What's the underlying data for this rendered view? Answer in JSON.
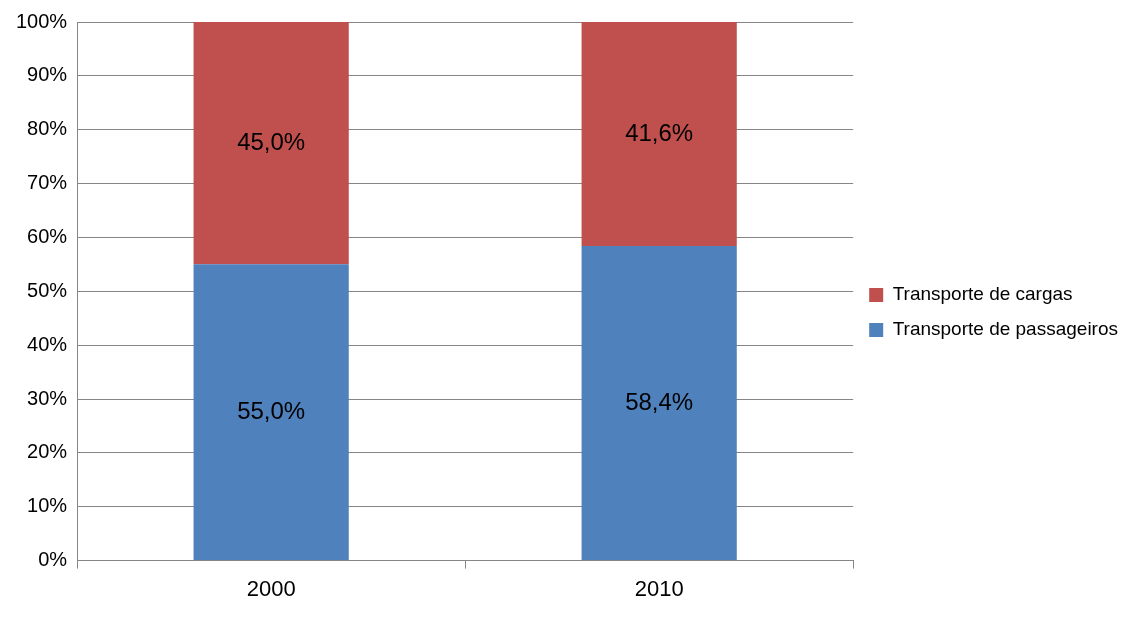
{
  "chart_data": {
    "type": "bar",
    "stacked": true,
    "categories": [
      "2000",
      "2010"
    ],
    "series": [
      {
        "name": "Transporte de passageiros",
        "color": "#4f81bd",
        "values": [
          55.0,
          58.4
        ],
        "value_labels": [
          "55,0%",
          "58,4%"
        ]
      },
      {
        "name": "Transporte de cargas",
        "color": "#c0504d",
        "values": [
          45.0,
          41.6
        ],
        "value_labels": [
          "45,0%",
          "41,6%"
        ]
      }
    ],
    "ylim": [
      0,
      100
    ],
    "yticks": [
      {
        "value": 0,
        "label": "0%"
      },
      {
        "value": 10,
        "label": "10%"
      },
      {
        "value": 20,
        "label": "20%"
      },
      {
        "value": 30,
        "label": "30%"
      },
      {
        "value": 40,
        "label": "40%"
      },
      {
        "value": 50,
        "label": "50%"
      },
      {
        "value": 60,
        "label": "60%"
      },
      {
        "value": 70,
        "label": "70%"
      },
      {
        "value": 80,
        "label": "80%"
      },
      {
        "value": 90,
        "label": "90%"
      },
      {
        "value": 100,
        "label": "100%"
      }
    ],
    "grid": "y",
    "legend": "right"
  }
}
